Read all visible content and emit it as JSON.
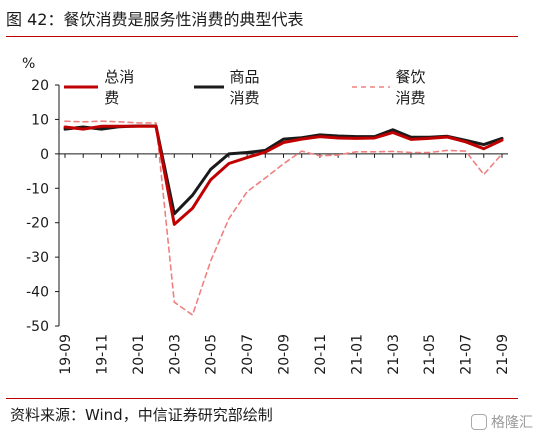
{
  "header": {
    "title": "图 42：餐饮消费是服务性消费的典型代表"
  },
  "footer": {
    "source": "资料来源：Wind，中信证券研究部绘制",
    "watermark": "格隆汇"
  },
  "colors": {
    "accent_red": "#c00000",
    "series_total": "#c00000",
    "series_goods": "#1a1a1a",
    "series_catering": "#f08080"
  },
  "chart_data": {
    "type": "line",
    "unit": "%",
    "ylim": [
      -50,
      20
    ],
    "yticks": [
      20,
      10,
      0,
      -10,
      -20,
      -30,
      -40,
      -50
    ],
    "xlabels": [
      "19-09",
      "19-11",
      "20-01",
      "20-03",
      "20-05",
      "20-07",
      "20-09",
      "20-11",
      "21-01",
      "21-03",
      "21-05",
      "21-07",
      "21-09"
    ],
    "x": [
      "19-09",
      "19-10",
      "19-11",
      "19-12",
      "20-01",
      "20-02",
      "20-03",
      "20-04",
      "20-05",
      "20-06",
      "20-07",
      "20-08",
      "20-09",
      "20-10",
      "20-11",
      "20-12",
      "21-01",
      "21-02",
      "21-03",
      "21-04",
      "21-05",
      "21-06",
      "21-07",
      "21-08",
      "21-09"
    ],
    "series": [
      {
        "name": "总消费",
        "style": "solid",
        "values": [
          7.8,
          7.2,
          8.0,
          8.0,
          8.0,
          8.0,
          -20.5,
          -15.8,
          -7.5,
          -2.8,
          -1.1,
          0.5,
          3.3,
          4.3,
          5.0,
          4.6,
          4.5,
          4.6,
          6.2,
          4.2,
          4.5,
          4.9,
          3.5,
          1.5,
          4.0
        ]
      },
      {
        "name": "商品消费",
        "style": "solid",
        "values": [
          7.2,
          7.8,
          7.2,
          7.9,
          8.1,
          8.1,
          -17.4,
          -12.0,
          -4.5,
          0.0,
          0.4,
          1.0,
          4.3,
          4.7,
          5.5,
          5.2,
          5.0,
          5.0,
          7.0,
          4.8,
          4.8,
          5.1,
          3.9,
          2.7,
          4.5
        ]
      },
      {
        "name": "餐饮消费",
        "style": "dashed",
        "values": [
          9.5,
          9.3,
          9.5,
          9.3,
          9.0,
          9.0,
          -43.1,
          -46.8,
          -31.1,
          -18.8,
          -11.0,
          -7.0,
          -2.9,
          0.8,
          -0.6,
          -0.3,
          0.6,
          0.6,
          0.7,
          0.4,
          0.4,
          1.0,
          0.8,
          -6.0,
          0.0
        ]
      }
    ]
  }
}
